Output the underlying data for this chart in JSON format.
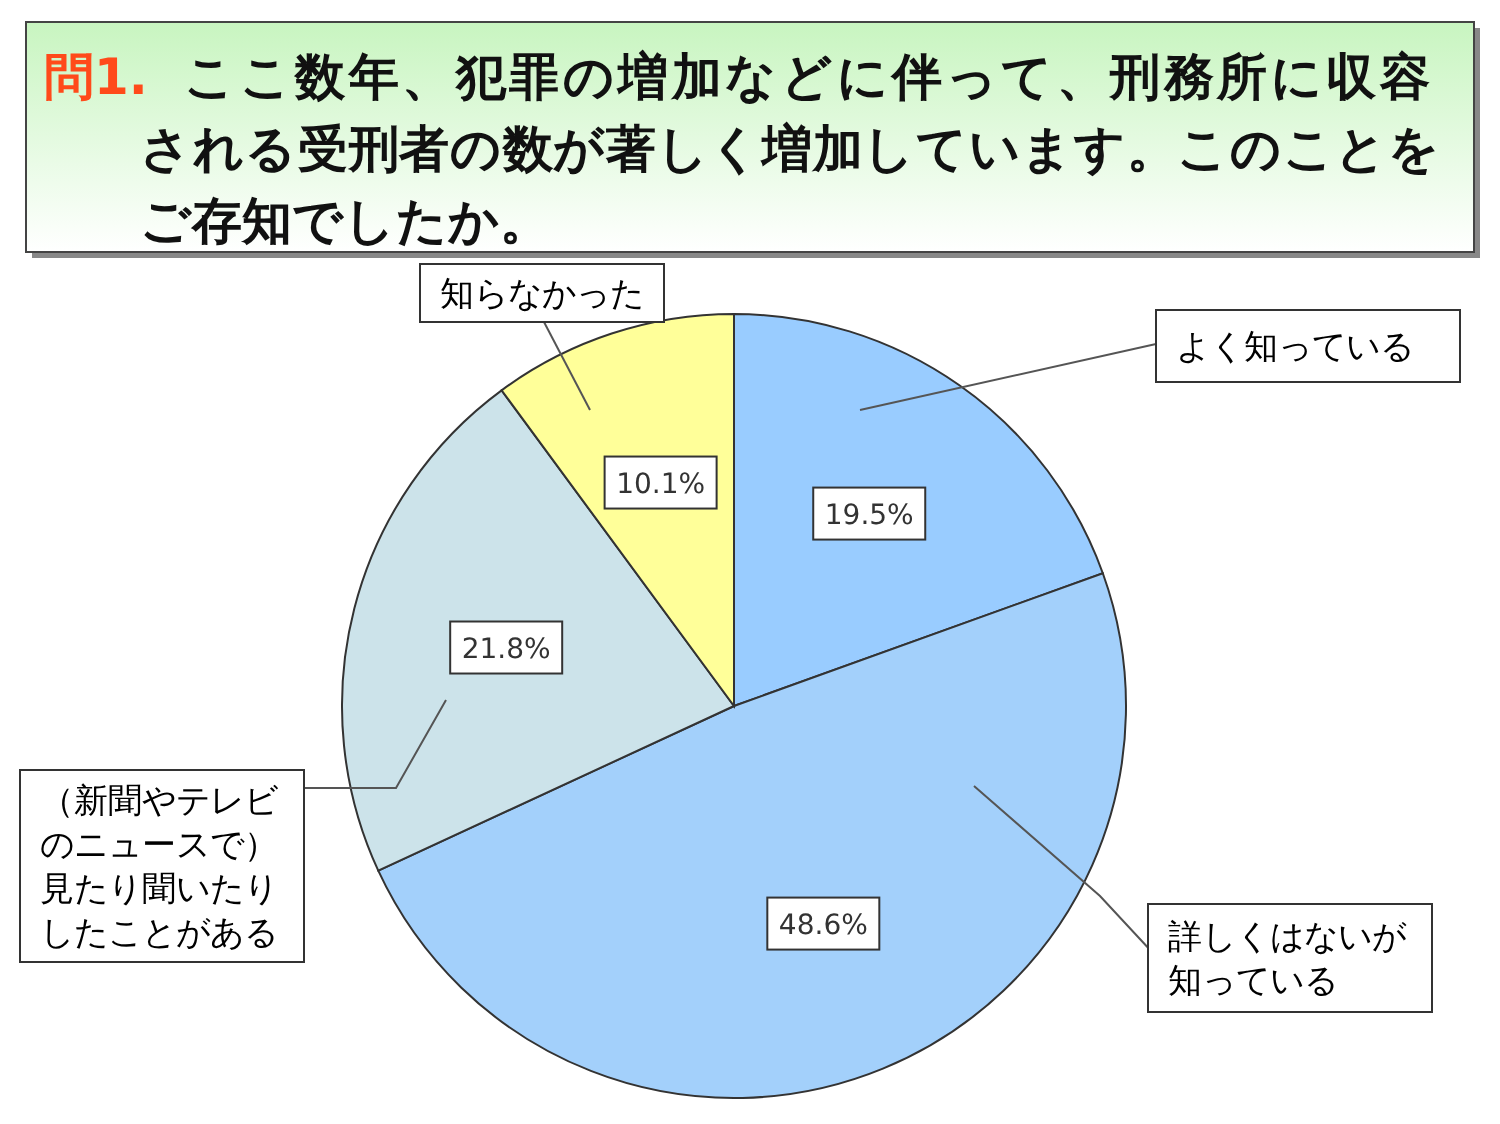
{
  "chart_data": {
    "type": "pie",
    "title": "問1.",
    "subtitle": "ここ数年、犯罪の増加などに伴って、刑務所に収容される受刑者の数が著しく増加しています。このことをご存知でしたか。",
    "categories": [
      "よく知っている",
      "詳しくはないが知っている",
      "（新聞やテレビのニュースで）見たり聞いたりしたことがある",
      "知らなかった"
    ],
    "values": [
      19.5,
      48.6,
      21.8,
      10.1
    ],
    "colors": [
      "#99ccff",
      "#a3d0fb",
      "#cce3ea",
      "#ffff99"
    ],
    "value_labels": [
      "19.5%",
      "48.6%",
      "21.8%",
      "10.1%"
    ]
  }
}
